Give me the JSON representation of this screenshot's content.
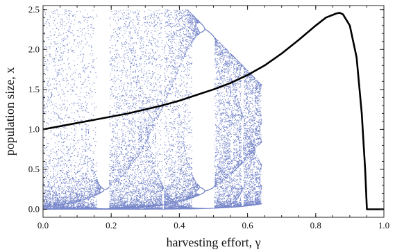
{
  "chart_data": {
    "type": "scatter",
    "title": "",
    "xlabel": "harvesting effort, γ",
    "ylabel": "population size, x",
    "xlim": [
      0.0,
      1.0
    ],
    "ylim": [
      -0.1,
      2.55
    ],
    "xticks": [
      "0.0",
      "0.2",
      "0.4",
      "0.6",
      "0.8",
      "1.0"
    ],
    "xtick_values": [
      0.0,
      0.2,
      0.4,
      0.6,
      0.8,
      1.0
    ],
    "yticks": [
      "0.0",
      "0.5",
      "1.0",
      "1.5",
      "2.0",
      "2.5"
    ],
    "ytick_values": [
      0.0,
      0.5,
      1.0,
      1.5,
      2.0,
      2.5
    ],
    "grid": false,
    "series": [
      {
        "kind": "bifurcation-points",
        "color": "#4a5fb8",
        "x_range": [
          0.0,
          0.64
        ],
        "y_range": [
          0.0,
          2.45
        ],
        "period_doubling_points": [
          0.285,
          0.38,
          0.635
        ],
        "branch_samples": {
          "x": [
            0.385,
            0.45,
            0.5,
            0.55,
            0.6,
            0.635
          ],
          "upper": [
            2.33,
            2.41,
            2.43,
            2.38,
            2.2,
            1.8
          ],
          "lower": [
            0.35,
            0.52,
            0.7,
            0.95,
            1.3,
            1.8
          ]
        }
      },
      {
        "kind": "line",
        "color": "#000000",
        "x": [
          0.0,
          0.05,
          0.1,
          0.15,
          0.2,
          0.25,
          0.3,
          0.35,
          0.4,
          0.45,
          0.5,
          0.55,
          0.6,
          0.65,
          0.7,
          0.75,
          0.8,
          0.83,
          0.86,
          0.87,
          0.88,
          0.9,
          0.92,
          0.935,
          0.945,
          0.95,
          1.0
        ],
        "y": [
          1.0,
          1.04,
          1.08,
          1.12,
          1.16,
          1.2,
          1.25,
          1.3,
          1.36,
          1.43,
          1.5,
          1.58,
          1.68,
          1.8,
          1.95,
          2.12,
          2.3,
          2.4,
          2.45,
          2.46,
          2.44,
          2.3,
          1.9,
          1.2,
          0.5,
          0.0,
          0.0
        ]
      }
    ]
  }
}
